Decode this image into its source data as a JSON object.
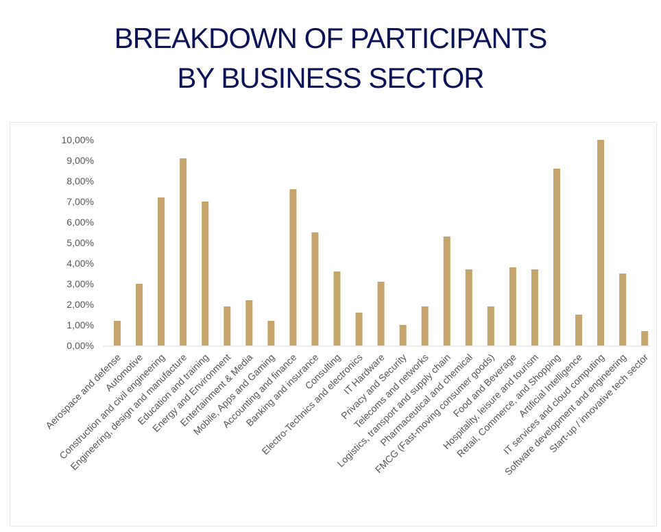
{
  "header": {
    "title_line1": "BREAKDOWN OF PARTICIPANTS",
    "title_line2": "BY BUSINESS SECTOR"
  },
  "colors": {
    "title": "#0b1457",
    "bar": "#c4a46a",
    "tick_text": "#555555"
  },
  "chart_data": {
    "type": "bar",
    "categories": [
      "Aerospace and defense",
      "Automotive",
      "Construction and civil engineering",
      "Engineering, design and manufacture",
      "Education and training",
      "Energy and Environment",
      "Entertainment & Media",
      "Mobile, Apps and Gaming",
      "Accounting and finance",
      "Banking and insurance",
      "Consulting",
      "Electro-Technics and electronics",
      "IT Hardware",
      "Privacy and Security",
      "Telecoms and networks",
      "Logistics, transport and supply chain",
      "Pharmaceutical and chemical",
      "FMCG (Fast-moving consumer goods)",
      "Food and Beverage",
      "Hospitality, leisure and tourism",
      "Retail, Commerce, and Shopping",
      "Artificial Intelligence",
      "IT services and cloud computing",
      "Software development and engineering",
      "Start-up / innovative tech sector"
    ],
    "values": [
      1.2,
      3.0,
      7.2,
      9.1,
      7.0,
      1.9,
      2.2,
      1.2,
      7.6,
      5.5,
      3.6,
      1.6,
      3.1,
      1.0,
      1.9,
      5.3,
      3.7,
      1.9,
      3.8,
      3.7,
      8.6,
      1.5,
      10.0,
      3.5,
      0.7
    ],
    "ytick_labels": [
      "0,00%",
      "1,00%",
      "2,00%",
      "3,00%",
      "4,00%",
      "5,00%",
      "6,00%",
      "7,00%",
      "8,00%",
      "9,00%",
      "10,00%"
    ],
    "ylim": [
      0,
      10
    ],
    "grid": false,
    "legend": "none",
    "title": "BREAKDOWN OF PARTICIPANTS BY BUSINESS SECTOR",
    "xlabel": "",
    "ylabel": ""
  }
}
